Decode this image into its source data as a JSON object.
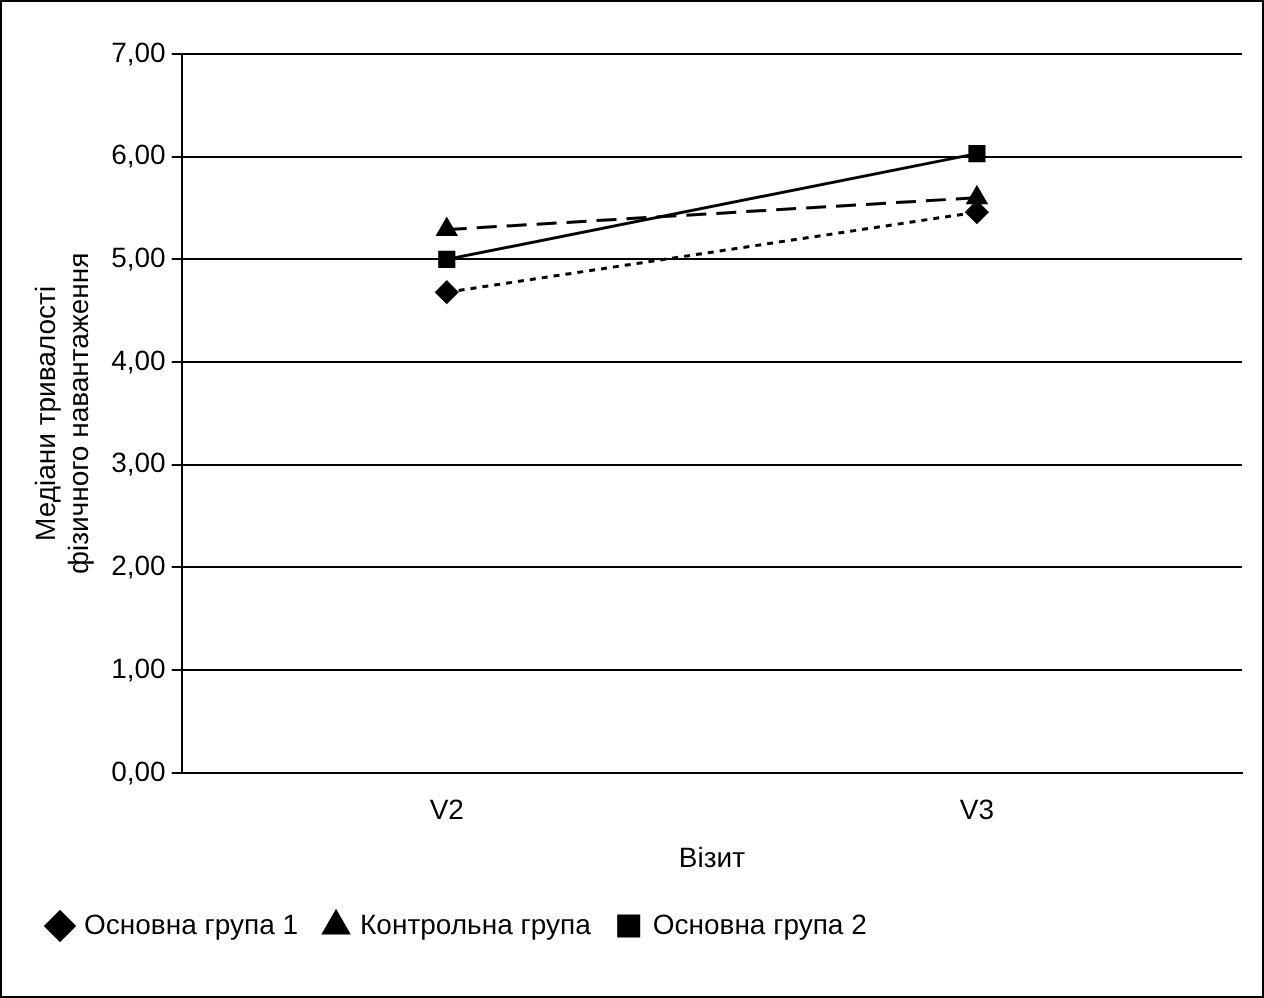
{
  "chart_data": {
    "type": "line",
    "xlabel": "Візит",
    "ylabel": "Медіани тривалості фізичного навантаження",
    "categories": [
      "V2",
      "V3"
    ],
    "ylim": [
      0,
      7
    ],
    "yticks": [
      {
        "value": 0,
        "label": "0,00"
      },
      {
        "value": 1,
        "label": "1,00"
      },
      {
        "value": 2,
        "label": "2,00"
      },
      {
        "value": 3,
        "label": "3,00"
      },
      {
        "value": 4,
        "label": "4,00"
      },
      {
        "value": 5,
        "label": "5,00"
      },
      {
        "value": 6,
        "label": "6,00"
      },
      {
        "value": 7,
        "label": "7,00"
      }
    ],
    "grid": "y",
    "legend": "bottom",
    "series": [
      {
        "name": "Основна група 1",
        "color": "#000000",
        "values": [
          4.68,
          5.46
        ],
        "marker": "diamond",
        "line_style": "dotted"
      },
      {
        "name": "Контрольна група",
        "color": "#000000",
        "values": [
          5.29,
          5.6
        ],
        "marker": "triangle",
        "line_style": "dashed"
      },
      {
        "name": "Основна група 2",
        "color": "#000000",
        "values": [
          5.0,
          6.03
        ],
        "marker": "square",
        "line_style": "solid"
      }
    ]
  }
}
